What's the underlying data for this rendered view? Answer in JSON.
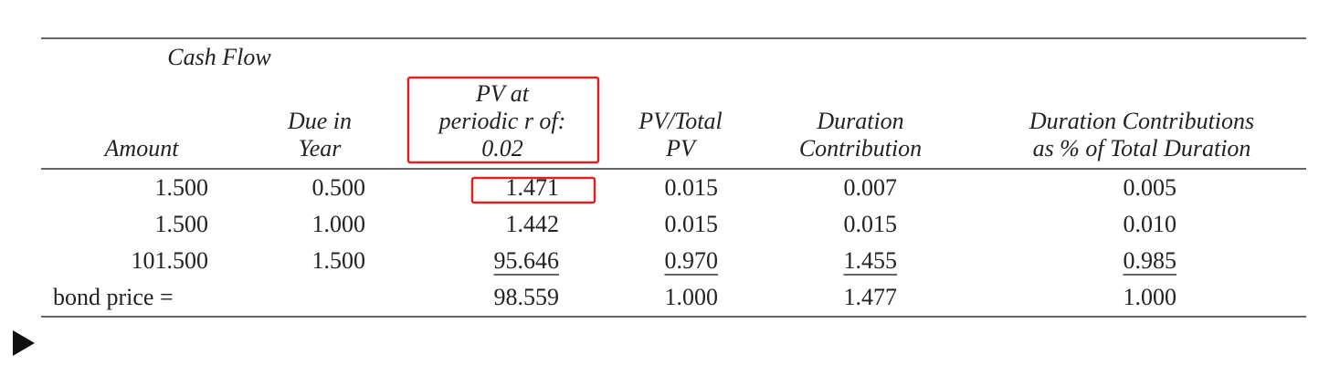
{
  "table": {
    "group_header": "Cash Flow",
    "columns": [
      [
        "Amount"
      ],
      [
        "Due in",
        "Year"
      ],
      [
        "PV at",
        "periodic r of:",
        "0.02"
      ],
      [
        "PV/Total",
        "PV"
      ],
      [
        "Duration",
        "Contribution"
      ],
      [
        "Duration Contributions",
        "as % of Total Duration"
      ]
    ],
    "rows": [
      [
        "1.500",
        "0.500",
        "1.471",
        "0.015",
        "0.007",
        "0.005"
      ],
      [
        "1.500",
        "1.000",
        "1.442",
        "0.015",
        "0.015",
        "0.010"
      ],
      [
        "101.500",
        "1.500",
        "95.646",
        "0.970",
        "1.455",
        "0.985"
      ]
    ],
    "total": {
      "label": "bond price =",
      "values": [
        "98.559",
        "1.000",
        "1.477",
        "1.000"
      ]
    }
  }
}
